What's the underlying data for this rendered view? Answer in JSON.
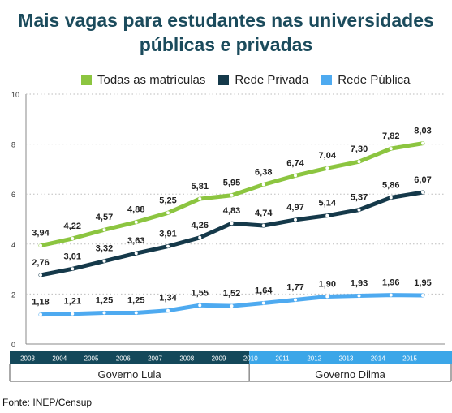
{
  "title": "Mais vagas para estudantes nas universidades públicas e privadas",
  "source": "Fonte: INEP/Censup",
  "colors": {
    "title": "#1b4b5c",
    "band_dark": "#14485a",
    "band_light": "#3ba6e8"
  },
  "periods": [
    {
      "label": "Governo Lula",
      "from": "2003",
      "to": "2009"
    },
    {
      "label": "Governo Dilma",
      "from": "2010",
      "to": "2015"
    }
  ],
  "chart_data": {
    "type": "line",
    "x": [
      "2003",
      "2004",
      "2005",
      "2006",
      "2007",
      "2008",
      "2009",
      "2010",
      "2011",
      "2012",
      "2013",
      "2014",
      "2015"
    ],
    "series": [
      {
        "name": "Todas as matrículas",
        "color": "#8cc540",
        "labels": [
          "3,94",
          "4,22",
          "4,57",
          "4,88",
          "5,25",
          "5,81",
          "5,95",
          "6,38",
          "6,74",
          "7,04",
          "7,30",
          "7,82",
          "8,03"
        ],
        "values": [
          3.94,
          4.22,
          4.57,
          4.88,
          5.25,
          5.81,
          5.95,
          6.38,
          6.74,
          7.04,
          7.3,
          7.82,
          8.03
        ]
      },
      {
        "name": "Rede Privada",
        "color": "#15394a",
        "labels": [
          "2,76",
          "3,01",
          "3,32",
          "3,63",
          "3,91",
          "4,26",
          "4,83",
          "4,74",
          "4,97",
          "5,14",
          "5,37",
          "5,86",
          "6,07"
        ],
        "values": [
          2.76,
          3.01,
          3.32,
          3.63,
          3.91,
          4.26,
          4.83,
          4.74,
          4.97,
          5.14,
          5.37,
          5.86,
          6.07
        ]
      },
      {
        "name": "Rede Pública",
        "color": "#4eaaf0",
        "labels": [
          "1,18",
          "1,21",
          "1,25",
          "1,25",
          "1,34",
          "1,55",
          "1,52",
          "1,64",
          "1,77",
          "1,90",
          "1,93",
          "1,96",
          "1,95"
        ],
        "values": [
          1.18,
          1.21,
          1.25,
          1.25,
          1.34,
          1.55,
          1.52,
          1.64,
          1.77,
          1.9,
          1.93,
          1.96,
          1.95
        ]
      }
    ],
    "yticks": [
      "0",
      "2",
      "4",
      "6",
      "8",
      "10"
    ],
    "ylim": [
      0,
      10
    ],
    "grid": true,
    "legend": "top-center"
  }
}
